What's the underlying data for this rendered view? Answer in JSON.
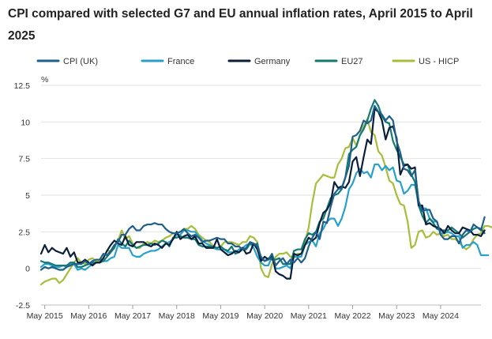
{
  "chart_data": {
    "type": "line",
    "title": "CPI compared with selected G7 and EU annual inflation rates, April 2015 to April 2025",
    "ylabel": "%",
    "ylim": [
      -2.5,
      12.5
    ],
    "yticks": [
      "12.5",
      "10",
      "7.5",
      "5",
      "2.5",
      "0",
      "-2.5"
    ],
    "ytick_values": [
      12.5,
      10,
      7.5,
      5,
      2.5,
      0,
      -2.5
    ],
    "x_start": "2015-04",
    "x_end": "2025-04",
    "xtick_labels": [
      "May 2015",
      "May 2016",
      "May 2017",
      "May 2018",
      "May 2019",
      "May 2020",
      "May 2021",
      "May 2022",
      "May 2023",
      "May 2024"
    ],
    "grid": "horizontal",
    "legend_position": "top",
    "series": [
      {
        "name": "CPI (UK)",
        "color": "#1f5f8b",
        "start": "2015-04",
        "values": [
          -0.1,
          0.1,
          0.0,
          0.1,
          0.0,
          -0.1,
          -0.1,
          0.1,
          0.2,
          0.3,
          0.3,
          0.3,
          0.5,
          0.3,
          0.5,
          0.6,
          0.6,
          1.0,
          0.9,
          1.2,
          1.6,
          1.8,
          2.3,
          2.3,
          2.7,
          2.9,
          2.6,
          2.6,
          2.9,
          3.0,
          3.0,
          3.1,
          3.0,
          3.0,
          2.7,
          2.5,
          2.4,
          2.4,
          2.5,
          2.7,
          2.4,
          2.2,
          2.3,
          2.1,
          1.8,
          1.9,
          1.9,
          2.0,
          2.1,
          2.0,
          2.0,
          1.7,
          1.7,
          1.5,
          1.5,
          1.3,
          1.4,
          1.8,
          1.7,
          1.5,
          0.8,
          0.5,
          0.6,
          1.0,
          0.2,
          0.5,
          0.7,
          0.3,
          0.6,
          0.4,
          0.7,
          0.4,
          0.7,
          1.5,
          2.1,
          2.5,
          2.0,
          3.2,
          3.1,
          4.2,
          5.1,
          5.4,
          5.5,
          6.2,
          7.0,
          9.0,
          9.1,
          9.4,
          10.1,
          9.9,
          10.1,
          11.1,
          10.7,
          10.5,
          10.1,
          10.4,
          10.1,
          8.7,
          7.9,
          6.8,
          6.7,
          6.3,
          6.7,
          4.6,
          3.9,
          4.0,
          4.0,
          3.4,
          3.2,
          2.3,
          2.0,
          2.0,
          2.2,
          2.2,
          1.7,
          2.3,
          2.6,
          2.5,
          3.0,
          2.8,
          2.6,
          3.5
        ]
      },
      {
        "name": "France",
        "color": "#27a0cc",
        "start": "2015-04",
        "values": [
          0.1,
          0.3,
          0.3,
          0.2,
          0.1,
          0.1,
          0.2,
          0.1,
          0.3,
          0.3,
          -0.1,
          0.0,
          -0.1,
          0.1,
          0.3,
          0.4,
          0.4,
          0.5,
          0.5,
          0.7,
          0.8,
          1.6,
          1.4,
          1.4,
          1.4,
          0.9,
          0.8,
          0.8,
          1.0,
          1.1,
          1.2,
          1.2,
          1.3,
          1.5,
          1.7,
          1.8,
          2.0,
          2.3,
          2.3,
          2.6,
          2.6,
          2.5,
          2.5,
          2.2,
          1.9,
          1.7,
          1.6,
          1.4,
          1.3,
          1.3,
          1.3,
          1.1,
          1.1,
          1.1,
          1.3,
          1.4,
          1.6,
          1.7,
          1.4,
          0.8,
          0.4,
          0.2,
          0.2,
          0.8,
          0.0,
          0.0,
          0.1,
          0.2,
          0.0,
          0.8,
          0.8,
          0.8,
          1.6,
          1.8,
          1.9,
          1.5,
          2.4,
          2.7,
          3.2,
          3.4,
          3.4,
          2.9,
          3.4,
          4.2,
          5.4,
          5.8,
          6.5,
          6.8,
          6.5,
          6.6,
          6.2,
          7.1,
          7.1,
          6.7,
          7.0,
          6.7,
          6.9,
          6.0,
          5.9,
          5.1,
          5.3,
          5.7,
          5.7,
          4.5,
          4.1,
          4.1,
          3.4,
          3.2,
          3.2,
          2.4,
          2.4,
          2.5,
          2.4,
          2.2,
          2.2,
          1.4,
          1.6,
          1.6,
          1.8,
          1.6,
          0.9,
          0.9,
          0.9
        ]
      },
      {
        "name": "Germany",
        "color": "#0b1f3a",
        "start": "2015-04",
        "values": [
          1.0,
          1.6,
          1.1,
          1.4,
          1.2,
          1.1,
          1.0,
          1.4,
          0.8,
          1.1,
          0.4,
          0.4,
          0.6,
          0.4,
          0.2,
          0.4,
          0.4,
          0.7,
          1.2,
          1.6,
          1.9,
          1.7,
          1.6,
          2.2,
          1.6,
          1.5,
          1.8,
          1.8,
          1.8,
          1.6,
          1.5,
          1.7,
          1.6,
          1.4,
          1.7,
          1.6,
          2.0,
          2.5,
          2.0,
          2.2,
          2.3,
          2.0,
          2.2,
          1.7,
          1.7,
          1.4,
          1.4,
          1.4,
          2.0,
          1.3,
          1.1,
          0.9,
          1.0,
          1.2,
          1.1,
          1.4,
          1.0,
          1.1,
          1.7,
          1.3,
          0.5,
          0.8,
          0.6,
          0.9,
          -0.2,
          -0.4,
          -0.5,
          -0.7,
          -0.7,
          1.0,
          0.9,
          1.0,
          1.6,
          2.1,
          1.9,
          2.1,
          3.1,
          3.8,
          4.0,
          4.5,
          5.9,
          5.5,
          5.6,
          5.5,
          5.9,
          7.3,
          7.6,
          6.3,
          7.6,
          8.8,
          8.5,
          10.9,
          10.7,
          10.1,
          8.8,
          9.6,
          9.7,
          8.9,
          6.4,
          7.0,
          7.1,
          6.8,
          6.9,
          4.3,
          4.3,
          3.0,
          3.1,
          2.9,
          2.8,
          2.7,
          2.4,
          2.9,
          2.6,
          2.4,
          2.4,
          2.8,
          2.7,
          2.6,
          2.3,
          2.3,
          2.2,
          2.6
        ]
      },
      {
        "name": "EU27",
        "color": "#137a73",
        "start": "2015-04",
        "values": [
          0.5,
          0.4,
          0.4,
          0.3,
          0.2,
          0.2,
          0.2,
          0.2,
          0.4,
          0.4,
          0.1,
          0.1,
          0.2,
          0.3,
          0.4,
          0.4,
          0.4,
          0.5,
          0.8,
          1.1,
          1.4,
          2.0,
          1.7,
          1.5,
          1.9,
          1.6,
          1.4,
          1.5,
          1.6,
          1.6,
          1.7,
          1.6,
          1.7,
          1.9,
          1.8,
          1.5,
          2.1,
          2.1,
          2.2,
          2.1,
          2.1,
          2.0,
          2.0,
          1.6,
          1.5,
          1.5,
          1.5,
          1.5,
          1.4,
          1.5,
          1.3,
          1.2,
          1.5,
          1.0,
          1.1,
          1.3,
          1.3,
          1.7,
          1.6,
          1.7,
          0.7,
          0.5,
          0.7,
          0.6,
          0.6,
          0.7,
          0.3,
          0.3,
          0.3,
          1.2,
          1.3,
          1.3,
          2.0,
          2.4,
          2.3,
          2.5,
          3.2,
          3.4,
          4.1,
          4.8,
          5.0,
          5.1,
          5.4,
          6.2,
          7.8,
          8.1,
          8.3,
          9.1,
          9.5,
          10.1,
          10.9,
          11.5,
          11.1,
          10.4,
          10.0,
          9.9,
          8.7,
          8.1,
          7.6,
          7.1,
          7.1,
          6.4,
          5.9,
          4.3,
          3.6,
          3.1,
          3.4,
          3.1,
          2.7,
          2.6,
          2.6,
          2.6,
          2.8,
          2.6,
          2.4,
          2.1,
          2.3,
          2.5,
          2.7,
          2.8,
          2.7,
          2.4
        ]
      },
      {
        "name": "US - HICP",
        "color": "#a8bd3a",
        "start": "2015-04",
        "values": [
          -1.1,
          -0.9,
          -0.8,
          -0.7,
          -0.7,
          -1.0,
          -0.8,
          -0.4,
          0.0,
          0.4,
          0.7,
          0.4,
          0.3,
          0.6,
          0.7,
          0.5,
          0.5,
          0.7,
          1.2,
          1.2,
          1.5,
          1.9,
          2.6,
          2.0,
          2.2,
          1.7,
          1.4,
          1.4,
          1.7,
          1.8,
          1.7,
          1.9,
          1.8,
          1.9,
          2.1,
          2.2,
          2.4,
          2.4,
          2.5,
          2.7,
          2.7,
          2.9,
          2.7,
          2.3,
          2.1,
          1.9,
          1.8,
          1.5,
          1.4,
          1.5,
          1.8,
          1.8,
          1.8,
          1.7,
          1.6,
          1.8,
          1.8,
          2.2,
          2.1,
          1.8,
          0.0,
          -0.5,
          -0.6,
          0.3,
          0.8,
          1.0,
          1.0,
          1.1,
          0.8,
          0.8,
          1.0,
          1.0,
          1.8,
          2.8,
          4.5,
          5.8,
          6.1,
          6.4,
          6.3,
          6.2,
          6.2,
          7.1,
          7.5,
          8.2,
          8.3,
          8.9,
          8.4,
          9.1,
          9.7,
          10.2,
          9.3,
          9.1,
          8.0,
          7.7,
          6.9,
          6.0,
          5.8,
          5.0,
          4.4,
          4.3,
          3.2,
          1.4,
          1.6,
          2.5,
          2.6,
          2.1,
          2.2,
          2.5,
          2.3,
          2.4,
          2.2,
          2.3,
          2.0,
          2.0,
          1.8,
          1.5,
          1.3,
          1.5,
          2.0,
          2.3,
          2.4,
          2.9,
          2.9,
          2.8
        ]
      }
    ]
  }
}
